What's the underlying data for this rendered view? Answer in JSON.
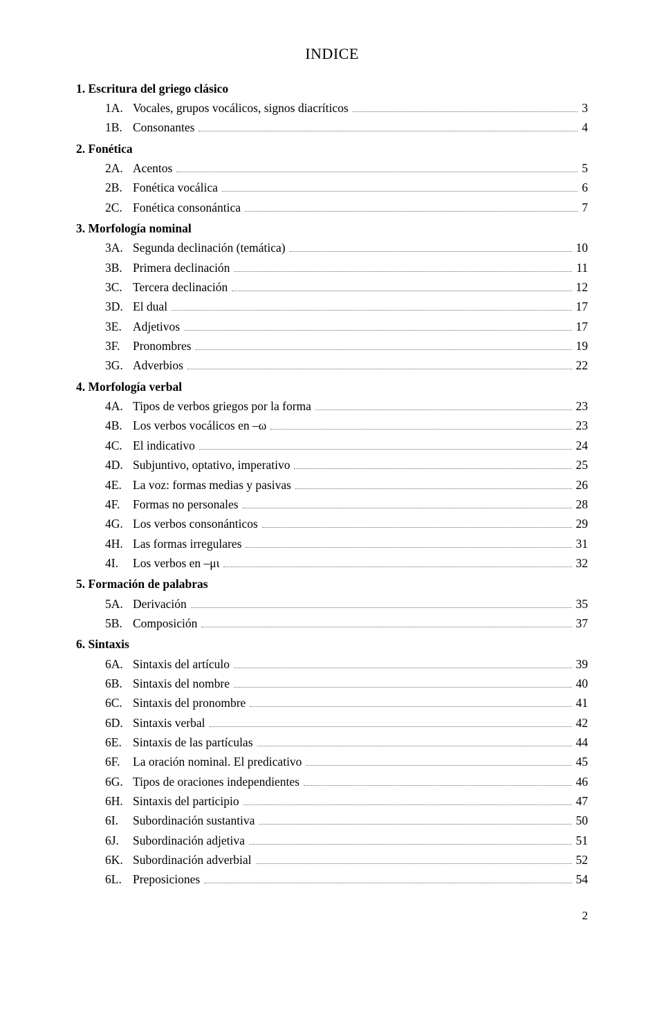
{
  "title": "INDICE",
  "footer_page": "2",
  "colors": {
    "text": "#000000",
    "background": "#ffffff",
    "leader": "#6b6b6b"
  },
  "typography": {
    "body_font": "Palatino Linotype / Book Antiqua",
    "title_fontsize_pt": 16,
    "body_fontsize_pt": 13,
    "line_height": 1.62
  },
  "sections": [
    {
      "heading": "1. Escritura del griego clásico",
      "items": [
        {
          "code": "1A.",
          "label": "Vocales, grupos vocálicos, signos diacríticos",
          "page": "3"
        },
        {
          "code": "1B.",
          "label": "Consonantes",
          "page": "4"
        }
      ]
    },
    {
      "heading": "2. Fonética",
      "items": [
        {
          "code": "2A.",
          "label": "Acentos",
          "page": "5"
        },
        {
          "code": "2B.",
          "label": "Fonética vocálica",
          "page": "6"
        },
        {
          "code": "2C.",
          "label": "Fonética consonántica",
          "page": "7"
        }
      ]
    },
    {
      "heading": "3. Morfología nominal",
      "items": [
        {
          "code": "3A.",
          "label": "Segunda declinación (temática)",
          "page": "10"
        },
        {
          "code": "3B.",
          "label": "Primera declinación",
          "page": "11"
        },
        {
          "code": "3C.",
          "label": "Tercera declinación",
          "page": "12"
        },
        {
          "code": "3D.",
          "label": "El dual",
          "page": "17"
        },
        {
          "code": "3E.",
          "label": "Adjetivos",
          "page": "17"
        },
        {
          "code": "3F.",
          "label": "Pronombres",
          "page": "19"
        },
        {
          "code": "3G.",
          "label": "Adverbios",
          "page": "22"
        }
      ]
    },
    {
      "heading": "4. Morfología verbal",
      "items": [
        {
          "code": "4A.",
          "label": "Tipos de verbos griegos por la forma",
          "page": "23"
        },
        {
          "code": "4B.",
          "label": "Los verbos vocálicos en –ω",
          "page": "23"
        },
        {
          "code": "4C.",
          "label": "El indicativo",
          "page": "24"
        },
        {
          "code": "4D.",
          "label": "Subjuntivo, optativo, imperativo",
          "page": "25"
        },
        {
          "code": "4E.",
          "label": "La voz: formas medias y pasivas",
          "page": "26"
        },
        {
          "code": "4F.",
          "label": "Formas no personales",
          "page": "28"
        },
        {
          "code": "4G.",
          "label": "Los verbos consonánticos",
          "page": "29"
        },
        {
          "code": "4H.",
          "label": "Las formas irregulares",
          "page": "31"
        },
        {
          "code": "4I.",
          "label": "Los verbos en –μι",
          "page": "32"
        }
      ]
    },
    {
      "heading": "5. Formación de palabras",
      "items": [
        {
          "code": "5A.",
          "label": "Derivación",
          "page": "35"
        },
        {
          "code": "5B.",
          "label": "Composición",
          "page": "37"
        }
      ]
    },
    {
      "heading": "6. Sintaxis",
      "items": [
        {
          "code": "6A.",
          "label": "Sintaxis del artículo",
          "page": "39"
        },
        {
          "code": "6B.",
          "label": "Sintaxis del nombre",
          "page": "40"
        },
        {
          "code": "6C.",
          "label": "Sintaxis del pronombre",
          "page": "41"
        },
        {
          "code": "6D.",
          "label": "Sintaxis verbal",
          "page": "42"
        },
        {
          "code": "6E.",
          "label": "Sintaxis de las partículas",
          "page": "44"
        },
        {
          "code": "6F.",
          "label": "La oración nominal. El predicativo",
          "page": "45"
        },
        {
          "code": "6G.",
          "label": "Tipos de oraciones independientes",
          "page": "46"
        },
        {
          "code": "6H.",
          "label": "Sintaxis del participio",
          "page": "47"
        },
        {
          "code": "6I.",
          "label": "Subordinación sustantiva",
          "page": "50"
        },
        {
          "code": "6J.",
          "label": "Subordinación adjetiva",
          "page": "51"
        },
        {
          "code": "6K.",
          "label": "Subordinación adverbial",
          "page": "52"
        },
        {
          "code": "6L.",
          "label": "Preposiciones",
          "page": "54"
        }
      ]
    }
  ]
}
